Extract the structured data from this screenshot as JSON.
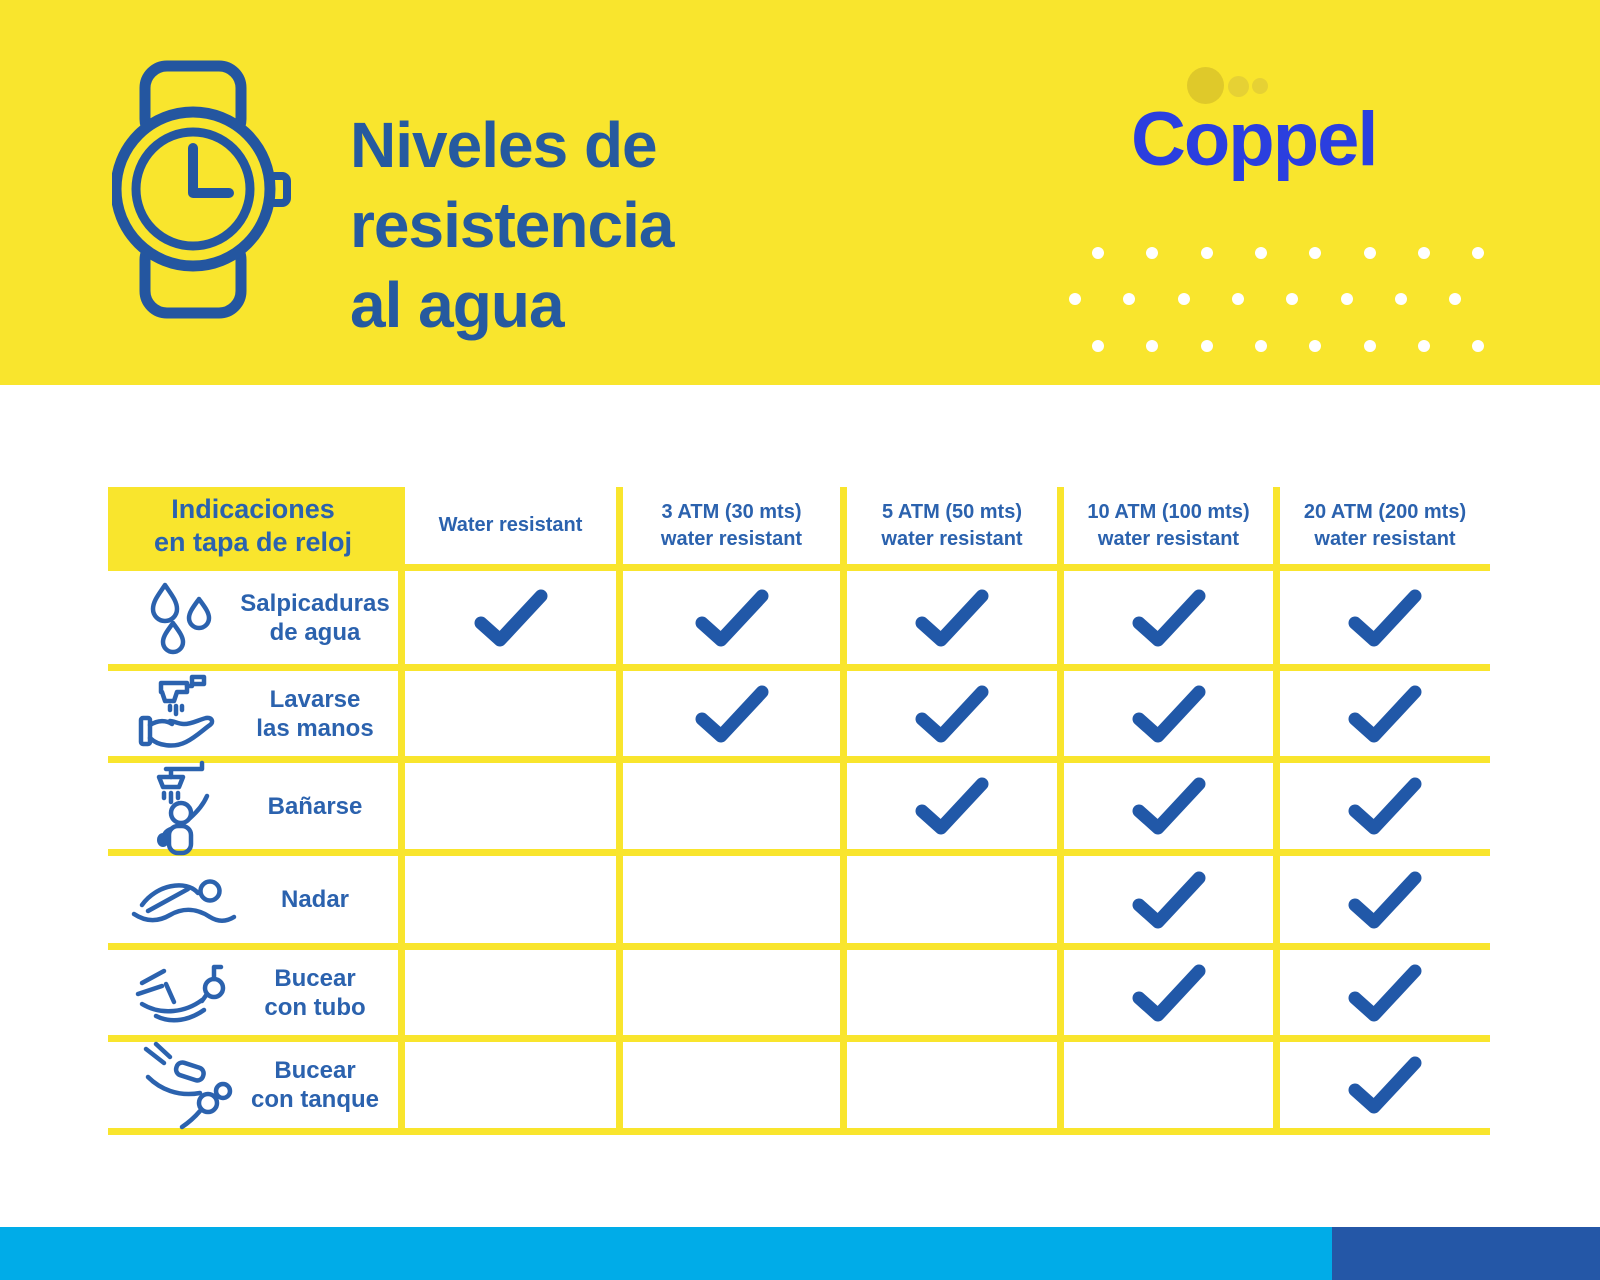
{
  "header": {
    "title_lines": [
      "Niveles de",
      "resistencia",
      "al agua"
    ],
    "logo_text": "Coppel"
  },
  "table": {
    "corner_label_lines": [
      "Indicaciones",
      "en tapa de reloj"
    ],
    "columns": [
      {
        "label_lines": [
          "Water resistant"
        ]
      },
      {
        "label_lines": [
          "3 ATM (30 mts)",
          "water resistant"
        ]
      },
      {
        "label_lines": [
          "5 ATM (50 mts)",
          "water resistant"
        ]
      },
      {
        "label_lines": [
          "10 ATM (100 mts)",
          "water resistant"
        ]
      },
      {
        "label_lines": [
          "20 ATM (200 mts)",
          "water resistant"
        ]
      }
    ],
    "rows": [
      {
        "icon": "water-drops-icon",
        "label_lines": [
          "Salpicaduras",
          "de agua"
        ],
        "checks": [
          true,
          true,
          true,
          true,
          true
        ]
      },
      {
        "icon": "hand-wash-icon",
        "label_lines": [
          "Lavarse",
          "las manos"
        ],
        "checks": [
          false,
          true,
          true,
          true,
          true
        ]
      },
      {
        "icon": "shower-icon",
        "label_lines": [
          "Bañarse"
        ],
        "checks": [
          false,
          false,
          true,
          true,
          true
        ]
      },
      {
        "icon": "swimmer-icon",
        "label_lines": [
          "Nadar"
        ],
        "checks": [
          false,
          false,
          false,
          true,
          true
        ]
      },
      {
        "icon": "snorkel-icon",
        "label_lines": [
          "Bucear",
          "con tubo"
        ],
        "checks": [
          false,
          false,
          false,
          true,
          true
        ]
      },
      {
        "icon": "scuba-icon",
        "label_lines": [
          "Bucear",
          "con tanque"
        ],
        "checks": [
          false,
          false,
          false,
          false,
          true
        ]
      }
    ]
  },
  "colors": {
    "banner_yellow": "#F9E52D",
    "title_blue": "#265A9F",
    "table_blue": "#2B62AE",
    "check_blue": "#2158A8",
    "logo_blue": "#2B3FDF",
    "footer_cyan": "#00ACE8",
    "footer_navy": "#2457A7"
  }
}
